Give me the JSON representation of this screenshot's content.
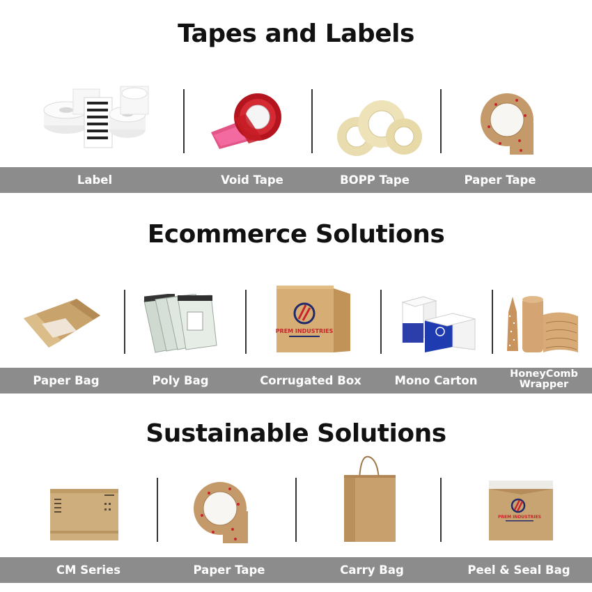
{
  "sections": [
    {
      "title": "Tapes and Labels",
      "items": [
        {
          "label": "Label",
          "icon": "label-rolls-icon"
        },
        {
          "label": "Void Tape",
          "icon": "void-tape-icon"
        },
        {
          "label": "BOPP Tape",
          "icon": "bopp-tape-icon"
        },
        {
          "label": "Paper Tape",
          "icon": "paper-tape-icon"
        }
      ]
    },
    {
      "title": "Ecommerce Solutions",
      "items": [
        {
          "label": "Paper Bag",
          "icon": "paper-bag-icon"
        },
        {
          "label": "Poly Bag",
          "icon": "poly-bag-icon"
        },
        {
          "label": "Corrugated Box",
          "icon": "corrugated-box-icon"
        },
        {
          "label": "Mono Carton",
          "icon": "mono-carton-icon"
        },
        {
          "label": "HoneyComb Wrapper",
          "icon": "honeycomb-wrapper-icon"
        }
      ]
    },
    {
      "title": "Sustainable Solutions",
      "items": [
        {
          "label": "CM Series",
          "icon": "cm-series-icon"
        },
        {
          "label": "Paper Tape",
          "icon": "paper-tape-icon"
        },
        {
          "label": "Carry Bag",
          "icon": "carry-bag-icon"
        },
        {
          "label": "Peel & Seal Bag",
          "icon": "peel-seal-bag-icon"
        }
      ]
    }
  ],
  "brand": {
    "name": "PREM INDUSTRIES",
    "colors": {
      "band": "#8c8c8c",
      "kraft": "#c9a473",
      "red": "#c8242b",
      "navy": "#1f2a6b"
    }
  }
}
